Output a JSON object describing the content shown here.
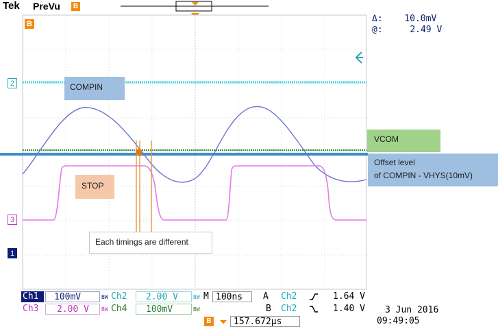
{
  "header": {
    "brand": "Tek",
    "mode": "PreVu",
    "bookmark_icon": "B-marker-icon"
  },
  "cursor_readout": {
    "delta_label": "Δ:",
    "delta_value": "10.0mV",
    "at_label": "@:",
    "at_value": "2.49 V"
  },
  "channel_markers": {
    "ch2": "2",
    "ch3": "3",
    "ch1": "1",
    "bref": "B"
  },
  "annotations": {
    "compin": "COMPIN",
    "vcom": "VCOM",
    "offset_line1": "Offset level",
    "offset_line2": "of COMPIN - VHYS(10mV)",
    "stop": "STOP",
    "timings": "Each timings are different"
  },
  "status_bar": {
    "ch1_label": "Ch1",
    "ch1_scale": "100mV",
    "ch2_label": "Ch2",
    "ch2_scale": "2.00 V",
    "ch3_label": "Ch3",
    "ch3_scale": "2.00 V",
    "ch4_label": "Ch4",
    "ch4_scale": "100mV",
    "bw_tag": "BW",
    "timebase_label": "M",
    "timebase_value": "100ns",
    "trig_a_label": "A",
    "trig_a_src": "Ch2",
    "trig_a_slope_icon": "rising-edge-icon",
    "trig_a_level": "1.64 V",
    "trig_b_label": "B",
    "trig_b_src": "Ch2",
    "trig_b_slope_icon": "falling-edge-icon",
    "trig_b_level": "1.40 V",
    "position_icon": "B-marker-icon",
    "position_value": "157.672μs",
    "date": "3 Jun  2016",
    "time": "09:49:05"
  },
  "colors": {
    "ch1": "#0f1d74",
    "ch2": "#21a9b4",
    "ch3": "#c033b8",
    "ch4": "#2e7d2e",
    "trace_blue": "#6b74cc",
    "trace_cyan": "#46d6e0",
    "trace_magenta": "#e07be8",
    "trace_green": "#3a8a3a",
    "marker_orange": "#f28a12",
    "offset_line": "#3f8fcd",
    "grid": "#c3c8cf"
  }
}
